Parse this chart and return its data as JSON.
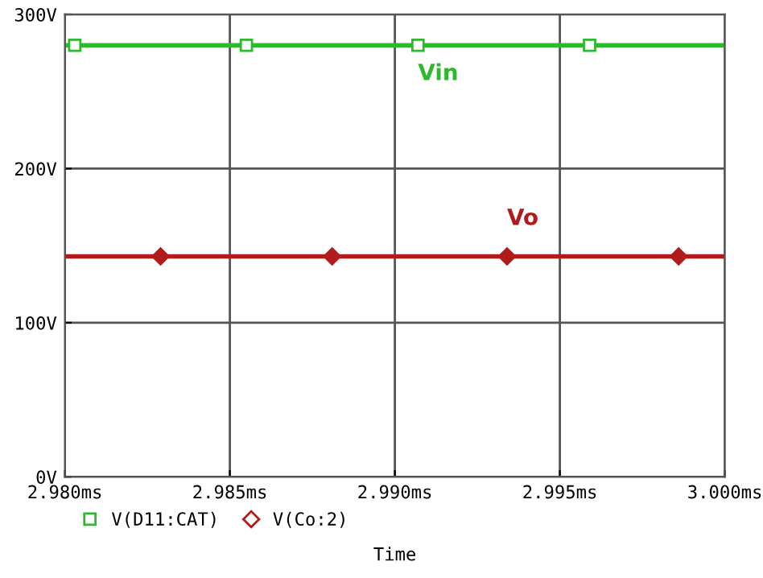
{
  "chart_data": {
    "type": "line",
    "xlabel": "Time",
    "x": [
      2.98,
      2.9803,
      2.9855,
      2.9907,
      2.9959,
      3.0
    ],
    "series": [
      {
        "name": "V(D11:CAT)",
        "color": "#2eb82e",
        "marker": "square",
        "values": [
          280,
          280,
          280,
          280,
          280,
          280
        ]
      },
      {
        "name": "V(Co:2)",
        "color": "#b01c1c",
        "marker": "diamond",
        "x": [
          2.98,
          2.9829,
          2.9881,
          2.9934,
          2.9986,
          3.0
        ],
        "values": [
          143,
          143,
          143,
          143,
          143,
          143
        ]
      }
    ],
    "annotations": [
      "Vin",
      "Vo"
    ],
    "xlim": [
      2.98,
      3.0
    ],
    "xticks": [
      {
        "value": 2.98,
        "label": "2.980ms"
      },
      {
        "value": 2.985,
        "label": "2.985ms"
      },
      {
        "value": 2.99,
        "label": "2.990ms"
      },
      {
        "value": 2.995,
        "label": "2.995ms"
      },
      {
        "value": 3.0,
        "label": "3.000ms"
      }
    ],
    "ylim": [
      0,
      300
    ],
    "yticks": [
      {
        "value": 0,
        "label": "0V"
      },
      {
        "value": 100,
        "label": "100V"
      },
      {
        "value": 200,
        "label": "200V"
      },
      {
        "value": 300,
        "label": "300V"
      }
    ],
    "grid": true,
    "legend": "bottom left",
    "line_style": "solid"
  }
}
